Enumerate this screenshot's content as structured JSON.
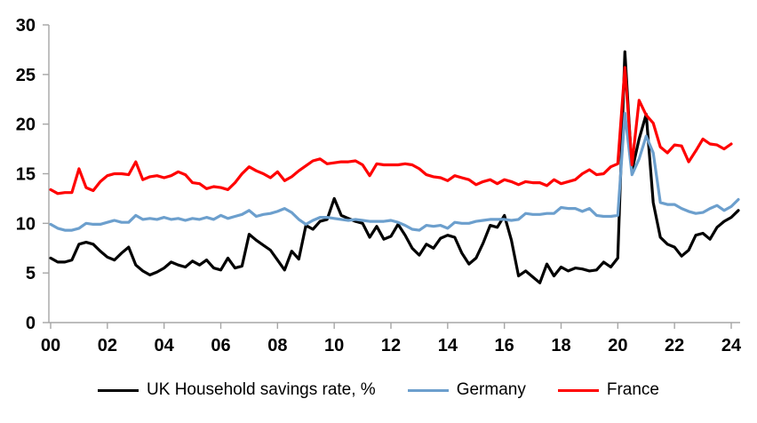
{
  "chart_data": {
    "type": "line",
    "title": "",
    "xlabel": "",
    "ylabel": "",
    "x_unit": "year (quarterly data)",
    "x_start": 2000,
    "x_step": 0.25,
    "xlim": [
      2000,
      2024.5
    ],
    "ylim": [
      0,
      30
    ],
    "grid": false,
    "legend_position": "bottom",
    "y_ticks": [
      0,
      5,
      10,
      15,
      20,
      25,
      30
    ],
    "x_tick_years": [
      2000,
      2002,
      2004,
      2006,
      2008,
      2010,
      2012,
      2014,
      2016,
      2018,
      2020,
      2022,
      2024
    ],
    "x_tick_labels": [
      "00",
      "02",
      "04",
      "06",
      "08",
      "10",
      "12",
      "14",
      "16",
      "18",
      "20",
      "22",
      "24"
    ],
    "series": [
      {
        "name": "UK Household savings rate, %",
        "color": "#000000",
        "values": [
          6.5,
          6.1,
          6.1,
          6.3,
          7.9,
          8.1,
          7.9,
          7.2,
          6.6,
          6.3,
          7.0,
          7.6,
          5.8,
          5.2,
          4.8,
          5.1,
          5.5,
          6.1,
          5.8,
          5.6,
          6.2,
          5.8,
          6.3,
          5.5,
          5.3,
          6.5,
          5.5,
          5.7,
          8.9,
          8.3,
          7.8,
          7.3,
          6.3,
          5.3,
          7.2,
          6.4,
          9.8,
          9.4,
          10.2,
          10.4,
          12.5,
          10.8,
          10.5,
          10.2,
          10.0,
          8.6,
          9.7,
          8.4,
          8.7,
          9.9,
          8.8,
          7.5,
          6.8,
          7.9,
          7.5,
          8.5,
          8.8,
          8.6,
          7.0,
          5.9,
          6.5,
          8.0,
          9.8,
          9.6,
          10.8,
          8.3,
          4.7,
          5.2,
          4.6,
          4.0,
          5.9,
          4.7,
          5.6,
          5.2,
          5.5,
          5.4,
          5.2,
          5.3,
          6.1,
          5.6,
          6.5,
          27.3,
          15.3,
          18.5,
          21.0,
          12.1,
          8.6,
          7.9,
          7.6,
          6.7,
          7.3,
          8.8,
          9.0,
          8.4,
          9.6,
          10.2,
          10.6,
          11.3
        ]
      },
      {
        "name": "Germany",
        "color": "#6C9FCD",
        "values": [
          9.9,
          9.5,
          9.3,
          9.3,
          9.5,
          10.0,
          9.9,
          9.9,
          10.1,
          10.3,
          10.1,
          10.1,
          10.8,
          10.4,
          10.5,
          10.4,
          10.6,
          10.4,
          10.5,
          10.3,
          10.5,
          10.4,
          10.6,
          10.4,
          10.8,
          10.5,
          10.7,
          10.9,
          11.3,
          10.7,
          10.9,
          11.0,
          11.2,
          11.5,
          11.1,
          10.4,
          9.9,
          10.3,
          10.6,
          10.6,
          10.5,
          10.4,
          10.3,
          10.4,
          10.3,
          10.2,
          10.2,
          10.2,
          10.3,
          10.1,
          9.8,
          9.4,
          9.3,
          9.8,
          9.7,
          9.8,
          9.5,
          10.1,
          10.0,
          10.0,
          10.2,
          10.3,
          10.4,
          10.4,
          10.4,
          10.3,
          10.4,
          11.0,
          10.9,
          10.9,
          11.0,
          11.0,
          11.6,
          11.5,
          11.5,
          11.2,
          11.5,
          10.8,
          10.7,
          10.7,
          10.8,
          21.1,
          14.9,
          16.5,
          18.8,
          17.1,
          12.1,
          11.9,
          11.9,
          11.5,
          11.2,
          11.0,
          11.1,
          11.5,
          11.8,
          11.3,
          11.7,
          12.4
        ]
      },
      {
        "name": "France",
        "color": "#FF0000",
        "values": [
          13.4,
          13.0,
          13.1,
          13.1,
          15.5,
          13.6,
          13.3,
          14.2,
          14.8,
          15.0,
          15.0,
          14.9,
          16.2,
          14.4,
          14.7,
          14.8,
          14.6,
          14.8,
          15.2,
          14.9,
          14.1,
          14.0,
          13.5,
          13.7,
          13.6,
          13.4,
          14.1,
          15.0,
          15.7,
          15.3,
          15.0,
          14.6,
          15.2,
          14.3,
          14.7,
          15.3,
          15.8,
          16.3,
          16.5,
          16.0,
          16.1,
          16.2,
          16.2,
          16.3,
          15.9,
          14.8,
          16.0,
          15.9,
          15.9,
          15.9,
          16.0,
          15.9,
          15.5,
          14.9,
          14.7,
          14.6,
          14.3,
          14.8,
          14.6,
          14.4,
          13.9,
          14.2,
          14.4,
          14.0,
          14.4,
          14.2,
          13.9,
          14.2,
          14.1,
          14.1,
          13.8,
          14.4,
          14.0,
          14.2,
          14.4,
          15.0,
          15.4,
          14.9,
          15.0,
          15.7,
          16.0,
          25.7,
          15.9,
          22.4,
          20.9,
          20.1,
          17.7,
          17.1,
          17.9,
          17.8,
          16.2,
          17.3,
          18.5,
          18.0,
          17.9,
          17.5,
          18.0
        ]
      }
    ],
    "axis_color": "#A6A6A6",
    "text_color": "#000000"
  }
}
